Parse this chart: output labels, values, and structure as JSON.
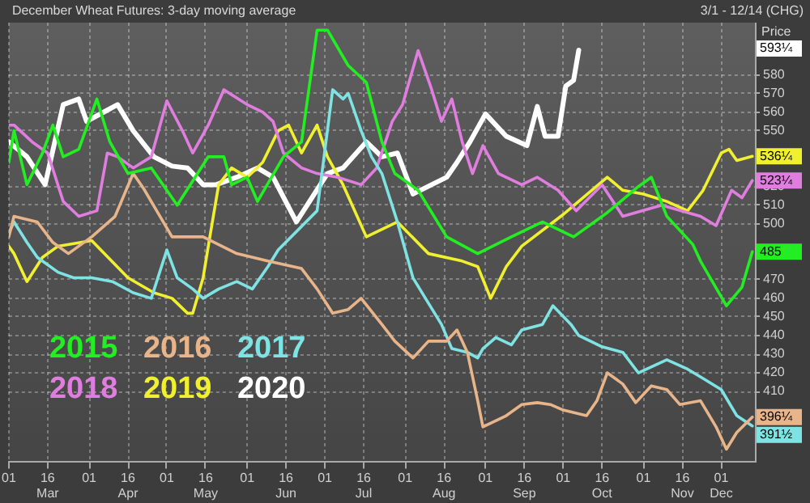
{
  "chart_data": {
    "type": "line",
    "title": "December Wheat Futures: 3-day moving average",
    "subtitle": "3/1 - 12/14 (CHG)",
    "ylabel": "Price USc",
    "xlim": [
      "--03-01",
      "--12-14"
    ],
    "xticks": [
      {
        "value": "--03-01",
        "label": "01"
      },
      {
        "value": "--03-16",
        "label": "16\nMar"
      },
      {
        "value": "--04-01",
        "label": "01"
      },
      {
        "value": "--04-16",
        "label": "16\nApr"
      },
      {
        "value": "--05-01",
        "label": "01"
      },
      {
        "value": "--05-16",
        "label": "16\nMay"
      },
      {
        "value": "--06-01",
        "label": "01"
      },
      {
        "value": "--06-16",
        "label": "16\nJun"
      },
      {
        "value": "--07-01",
        "label": "01"
      },
      {
        "value": "--07-16",
        "label": "16\nJul"
      },
      {
        "value": "--08-01",
        "label": "01"
      },
      {
        "value": "--08-16",
        "label": "16\nAug"
      },
      {
        "value": "--09-01",
        "label": "01"
      },
      {
        "value": "--09-16",
        "label": "16\nSep"
      },
      {
        "value": "--10-01",
        "label": "01"
      },
      {
        "value": "--10-16",
        "label": "16\nOct"
      },
      {
        "value": "--11-01",
        "label": "01"
      },
      {
        "value": "--11-16",
        "label": "16\nNov"
      },
      {
        "value": "--12-01",
        "label": "01\nDec"
      }
    ],
    "ylim": [
      372,
      608
    ],
    "yticks": [
      410,
      420,
      430,
      440,
      450,
      460,
      470,
      500,
      510,
      520,
      550,
      560,
      570,
      580
    ],
    "grid": true,
    "legend": "bottom left",
    "marker": "none",
    "line_style": "solid",
    "series": [
      {
        "name": "2015",
        "color": "#22ee22",
        "x": [
          "--03-01",
          "--03-03",
          "--03-08",
          "--03-14",
          "--03-18",
          "--03-22",
          "--03-28",
          "--04-04",
          "--04-09",
          "--04-16",
          "--04-25",
          "--05-05",
          "--05-17",
          "--05-23",
          "--05-26",
          "--06-01",
          "--06-05",
          "--06-15",
          "--06-22",
          "--06-28",
          "--07-02",
          "--07-10",
          "--07-17",
          "--07-23",
          "--07-28",
          "--08-06",
          "--08-17",
          "--08-29",
          "--09-11",
          "--09-23",
          "--10-05",
          "--10-18",
          "--10-30",
          "--11-04",
          "--11-10",
          "--11-20",
          "--11-23",
          "--12-03",
          "--12-09",
          "--12-13"
        ],
        "values": [
          533,
          550,
          521,
          538,
          553,
          536,
          540,
          567,
          544,
          527,
          530,
          510,
          536,
          536,
          521,
          525,
          512,
          536,
          544,
          604,
          604,
          585,
          576,
          544,
          527,
          518,
          493,
          484,
          493,
          501,
          493,
          506,
          520,
          525,
          504,
          489,
          480,
          456,
          466,
          485
        ]
      },
      {
        "name": "2016",
        "color": "#e8b48a",
        "x": [
          "--03-01",
          "--03-03",
          "--03-12",
          "--03-18",
          "--03-24",
          "--04-02",
          "--04-11",
          "--04-18",
          "--04-22",
          "--05-03",
          "--05-15",
          "--05-28",
          "--06-09",
          "--06-22",
          "--06-28",
          "--07-04",
          "--07-10",
          "--07-15",
          "--07-23",
          "--07-28",
          "--08-04",
          "--08-10",
          "--08-17",
          "--08-21",
          "--08-25",
          "--08-29",
          "--08-31",
          "--09-09",
          "--09-15",
          "--09-21",
          "--09-26",
          "--10-01",
          "--10-10",
          "--10-14",
          "--10-18",
          "--10-24",
          "--10-29",
          "--11-04",
          "--11-10",
          "--11-15",
          "--11-23",
          "--11-29",
          "--12-03",
          "--12-07",
          "--12-13"
        ],
        "values": [
          493,
          504,
          501,
          490,
          484,
          493,
          504,
          527,
          519,
          493,
          493,
          484,
          480,
          476,
          465,
          452,
          454,
          460,
          446,
          437,
          428,
          437,
          437,
          443,
          431,
          405,
          391,
          397,
          403,
          404,
          403,
          400,
          397,
          405,
          420,
          414,
          404,
          413,
          411,
          403,
          405,
          391,
          379,
          388,
          396.25
        ]
      },
      {
        "name": "2017",
        "color": "#7fe3e3",
        "x": [
          "--03-01",
          "--03-03",
          "--03-08",
          "--03-10",
          "--03-12",
          "--03-20",
          "--03-26",
          "--04-02",
          "--04-10",
          "--04-18",
          "--04-25",
          "--05-01",
          "--05-05",
          "--05-11",
          "--05-15",
          "--05-21",
          "--05-28",
          "--06-03",
          "--06-09",
          "--06-13",
          "--06-28",
          "--07-04",
          "--07-08",
          "--07-10",
          "--07-15",
          "--07-19",
          "--07-23",
          "--07-29",
          "--08-04",
          "--08-15",
          "--08-19",
          "--08-25",
          "--08-29",
          "--08-31",
          "--09-05",
          "--09-11",
          "--09-15",
          "--09-23",
          "--09-27",
          "--10-04",
          "--10-07",
          "--10-16",
          "--10-24",
          "--10-30",
          "--11-10",
          "--11-18",
          "--11-24",
          "--12-01",
          "--12-07",
          "--12-13"
        ],
        "values": [
          495,
          501,
          490,
          486,
          482,
          474,
          471,
          471,
          469,
          463,
          460,
          486,
          471,
          465,
          460,
          465,
          469,
          465,
          477,
          486,
          507,
          572,
          567,
          570,
          550,
          536,
          527,
          501,
          471,
          446,
          433,
          431,
          428,
          433,
          439,
          435,
          443,
          446,
          456,
          446,
          440,
          434,
          431,
          420,
          427,
          422,
          417,
          411,
          397,
          391.5
        ]
      },
      {
        "name": "2018",
        "color": "#e07ee0",
        "x": [
          "--03-01",
          "--03-03",
          "--03-10",
          "--03-16",
          "--03-22",
          "--03-28",
          "--04-04",
          "--04-08",
          "--04-12",
          "--04-18",
          "--04-25",
          "--05-01",
          "--05-07",
          "--05-11",
          "--05-17",
          "--05-23",
          "--06-01",
          "--06-07",
          "--06-11",
          "--06-15",
          "--06-22",
          "--06-28",
          "--07-06",
          "--07-15",
          "--07-21",
          "--07-27",
          "--07-31",
          "--08-06",
          "--08-11",
          "--08-15",
          "--08-19",
          "--08-23",
          "--08-27",
          "--08-31",
          "--09-06",
          "--09-15",
          "--09-21",
          "--09-29",
          "--10-06",
          "--10-16",
          "--10-24",
          "--11-08",
          "--11-23",
          "--11-29",
          "--12-05",
          "--12-09",
          "--12-13"
        ],
        "values": [
          553,
          553,
          544,
          538,
          512,
          504,
          507,
          538,
          536,
          530,
          536,
          566,
          550,
          538,
          553,
          572,
          564,
          560,
          555,
          538,
          530,
          527,
          525,
          521,
          530,
          555,
          564,
          593,
          573,
          555,
          567,
          544,
          527,
          542,
          527,
          521,
          525,
          518,
          507,
          521,
          504,
          510,
          504,
          499,
          518,
          514,
          523.25
        ]
      },
      {
        "name": "2019",
        "color": "#f0f030",
        "x": [
          "--03-01",
          "--03-03",
          "--03-08",
          "--03-14",
          "--03-20",
          "--04-02",
          "--04-16",
          "--04-26",
          "--05-03",
          "--05-09",
          "--05-11",
          "--05-15",
          "--05-17",
          "--05-21",
          "--05-26",
          "--06-01",
          "--06-07",
          "--06-13",
          "--06-17",
          "--06-22",
          "--06-28",
          "--07-02",
          "--07-08",
          "--07-17",
          "--07-29",
          "--08-10",
          "--08-23",
          "--08-29",
          "--09-03",
          "--09-09",
          "--09-15",
          "--10-01",
          "--10-18",
          "--10-24",
          "--11-01",
          "--11-10",
          "--11-18",
          "--11-24",
          "--12-01",
          "--12-04",
          "--12-07",
          "--12-13"
        ],
        "values": [
          488,
          484,
          469,
          482,
          488,
          491,
          471,
          463,
          460,
          452,
          452,
          471,
          488,
          521,
          530,
          525,
          533,
          550,
          553,
          538,
          553,
          536,
          521,
          493,
          501,
          484,
          480,
          477,
          460,
          477,
          488,
          505,
          525,
          518,
          516,
          512,
          507,
          518,
          538,
          540,
          534,
          536.25
        ]
      },
      {
        "name": "2020",
        "color": "#ffffff",
        "x": [
          "--03-01",
          "--03-08",
          "--03-15",
          "--03-22",
          "--03-28",
          "--03-31",
          "--04-08",
          "--04-12",
          "--04-18",
          "--04-26",
          "--05-03",
          "--05-09",
          "--05-15",
          "--05-20",
          "--05-28",
          "--06-05",
          "--06-11",
          "--06-20",
          "--07-02",
          "--07-08",
          "--07-17",
          "--07-23",
          "--07-29",
          "--08-04",
          "--08-17",
          "--08-21",
          "--08-26",
          "--09-01",
          "--09-09",
          "--09-17",
          "--09-21",
          "--09-24",
          "--09-29",
          "--10-02",
          "--10-05",
          "--10-07"
        ],
        "values": [
          544,
          536,
          521,
          564,
          567,
          555,
          561,
          564,
          550,
          536,
          531,
          530,
          521,
          521,
          525,
          530,
          525,
          501,
          527,
          530,
          544,
          536,
          538,
          516,
          525,
          533,
          544,
          559,
          547,
          542,
          563,
          547,
          547,
          574,
          577,
          593.25
        ]
      }
    ],
    "annotations": [
      "593¼",
      {
        "text": "536¼",
        "x": "--12-14",
        "y": 536.25
      },
      {
        "text": "523¼",
        "x": "--12-14",
        "y": 523.25
      },
      {
        "text": "485",
        "x": "--12-14",
        "y": 485
      },
      {
        "text": "396¼",
        "x": "--12-14",
        "y": 396.25
      },
      {
        "text": "391½",
        "x": "--12-14",
        "y": 391.5
      }
    ]
  }
}
